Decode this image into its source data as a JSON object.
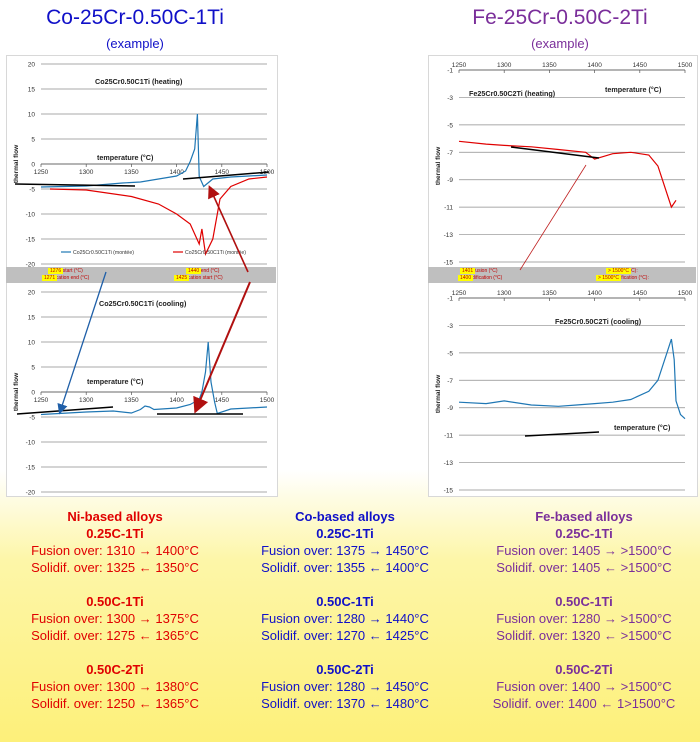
{
  "titles": {
    "co": {
      "main": "Co-25Cr-0.50C-1Ti",
      "sub": "(example)"
    },
    "fe": {
      "main": "Fe-25Cr-0.50C-2Ti",
      "sub": "(example)"
    }
  },
  "colors": {
    "ni": "#e00000",
    "co": "#1010c8",
    "fe": "#7a2e9a",
    "curve": "#1f77b4",
    "heating_curve": "#e00000"
  },
  "chart_data": [
    {
      "type": "line",
      "title": "Co25Cr0.50C1Ti (heating)",
      "xlabel": "temperature (°C)",
      "ylabel": "thermal flow",
      "xlim": [
        1250,
        1500
      ],
      "ylim": [
        -20,
        20
      ],
      "xticks": [
        "1250",
        "1300",
        "1350",
        "1400",
        "1450",
        "1500"
      ],
      "yticks": [
        "20",
        "15",
        "10",
        "5",
        "0",
        "-5",
        "-10",
        "-15",
        "-20"
      ],
      "legend": [
        "Co25Cr0.50C1Ti (montée)",
        "Co25Cr0.50C1Ti (montée)"
      ],
      "series": [
        {
          "name": "Co25Cr0.50C1Ti (montée)",
          "color": "#1f77b4",
          "x": [
            1250,
            1300,
            1340,
            1360,
            1380,
            1400,
            1410,
            1415,
            1420,
            1423,
            1425,
            1430,
            1440,
            1460,
            1480,
            1500
          ],
          "y": [
            -4.6,
            -4.4,
            -3.8,
            -3.6,
            -3.0,
            -2.4,
            -1.4,
            0.5,
            3,
            10,
            -2.5,
            -4.5,
            -3.0,
            -2.6,
            -2.4,
            -2.2
          ]
        },
        {
          "name": "Co25Cr0.50C1Ti (montée)",
          "color": "#e00000",
          "x": [
            1260,
            1300,
            1350,
            1380,
            1400,
            1415,
            1425,
            1428,
            1432,
            1440,
            1448,
            1460,
            1480,
            1500
          ],
          "y": [
            -5,
            -5.2,
            -6.5,
            -8,
            -10,
            -12,
            -16,
            -13,
            -18,
            -15,
            -7,
            -4.5,
            -3,
            -2.6
          ]
        }
      ]
    },
    {
      "type": "line",
      "title": "Co25Cr0.50C1Ti (cooling)",
      "xlabel": "temperature (°C)",
      "ylabel": "thermal flow",
      "xlim": [
        1250,
        1500
      ],
      "ylim": [
        -20,
        20
      ],
      "xticks": [
        "1250",
        "1300",
        "1350",
        "1400",
        "1450",
        "1500"
      ],
      "yticks": [
        "20",
        "15",
        "10",
        "5",
        "0",
        "-5",
        "-10",
        "-15",
        "-20"
      ],
      "series": [
        {
          "name": "",
          "color": "#1f77b4",
          "x": [
            1250,
            1280,
            1300,
            1330,
            1350,
            1360,
            1365,
            1370,
            1375,
            1400,
            1415,
            1425,
            1428,
            1432,
            1435,
            1438,
            1442,
            1445,
            1460,
            1480,
            1500
          ],
          "y": [
            -4.5,
            -4.2,
            -4.0,
            -3.8,
            -4.2,
            -3.5,
            -2.8,
            -3.0,
            -3.5,
            -3.2,
            -2.5,
            -1.5,
            0,
            4,
            10,
            2,
            -2,
            -4.3,
            -3.4,
            -3.2,
            -3.0
          ]
        }
      ]
    },
    {
      "type": "line",
      "title": "Fe25Cr0.50C2Ti (heating)",
      "xlabel": "temperature (°C)",
      "ylabel": "thermal flow",
      "xlim": [
        1250,
        1500
      ],
      "ylim": [
        -15,
        -1
      ],
      "xticks": [
        "1250",
        "1300",
        "1350",
        "1400",
        "1450",
        "1500"
      ],
      "yticks": [
        "-1",
        "-3",
        "-5",
        "-7",
        "-9",
        "-11",
        "-13",
        "-15"
      ],
      "series": [
        {
          "name": "",
          "color": "#e00000",
          "x": [
            1250,
            1280,
            1300,
            1330,
            1360,
            1390,
            1400,
            1410,
            1420,
            1440,
            1460,
            1470,
            1475,
            1480,
            1485,
            1490
          ],
          "y": [
            -6.2,
            -6.4,
            -6.5,
            -6.6,
            -6.8,
            -7.0,
            -7.5,
            -7.3,
            -7.1,
            -7.0,
            -7.2,
            -8,
            -9,
            -10,
            -11,
            -10.5
          ]
        }
      ]
    },
    {
      "type": "line",
      "title": "Fe25Cr0.50C2Ti (cooling)",
      "xlabel": "temperature (°C)",
      "ylabel": "thermal flow",
      "xlim": [
        1250,
        1500
      ],
      "ylim": [
        -15,
        -1
      ],
      "xticks": [
        "1250",
        "1300",
        "1350",
        "1400",
        "1450",
        "1500"
      ],
      "yticks": [
        "-1",
        "-3",
        "-5",
        "-7",
        "-9",
        "-11",
        "-13",
        "-15"
      ],
      "series": [
        {
          "name": "",
          "color": "#1f77b4",
          "x": [
            1250,
            1280,
            1300,
            1330,
            1360,
            1380,
            1400,
            1420,
            1440,
            1460,
            1470,
            1480,
            1485,
            1488,
            1490,
            1495,
            1500
          ],
          "y": [
            -8.6,
            -8.7,
            -8.5,
            -8.8,
            -8.9,
            -8.8,
            -8.7,
            -8.6,
            -8.4,
            -7.8,
            -7.0,
            -5.0,
            -4.0,
            -5.5,
            -8.5,
            -9.5,
            -9.8
          ]
        }
      ]
    }
  ],
  "bands": {
    "co": {
      "left": [
        {
          "label": "fusion start (°C)",
          "value": "1276"
        },
        {
          "label": "solidification end (°C)",
          "value": "1271"
        }
      ],
      "right": [
        {
          "label": "fusion end (°C)",
          "value": "1440"
        },
        {
          "label": "solidification start (°C)",
          "value": "1425"
        }
      ]
    },
    "fe": {
      "left": [
        {
          "label": "début fusion (°C)",
          "value": "1401"
        },
        {
          "label": "fin solidification (°C)",
          "value": "1400"
        }
      ],
      "right": [
        {
          "label": "fin fusion (°C):",
          "value": "> 1500°C"
        },
        {
          "label": "début solidification (°C):",
          "value": "> 1500°C"
        }
      ]
    }
  },
  "summary": {
    "ni": {
      "title": "Ni-based alloys",
      "groups": [
        {
          "name": "0.25C-1Ti",
          "fusion": "Fusion over: 1310 → 1400°C",
          "solid": "Solidif. over: 1325 ← 1350°C"
        },
        {
          "name": "0.50C-1Ti",
          "fusion": "Fusion over: 1300 → 1375°C",
          "solid": "Solidif. over: 1275 ← 1365°C"
        },
        {
          "name": "0.50C-2Ti",
          "fusion": "Fusion over: 1300 → 1380°C",
          "solid": "Solidif. over: 1250 ← 1365°C"
        }
      ]
    },
    "co": {
      "title": "Co-based alloys",
      "groups": [
        {
          "name": "0.25C-1Ti",
          "fusion": "Fusion over: 1375 → 1450°C",
          "solid": "Solidif. over: 1355 ← 1400°C"
        },
        {
          "name": "0.50C-1Ti",
          "fusion": "Fusion over: 1280 → 1440°C",
          "solid": "Solidif. over: 1270 ← 1425°C"
        },
        {
          "name": "0.50C-2Ti",
          "fusion": "Fusion over: 1280 → 1450°C",
          "solid": "Solidif. over: 1370 ← 1480°C"
        }
      ]
    },
    "fe": {
      "title": "Fe-based alloys",
      "groups": [
        {
          "name": "0.25C-1Ti",
          "fusion": "Fusion over: 1405 → >1500°C",
          "solid": "Solidif. over: 1405 ← >1500°C"
        },
        {
          "name": "0.50C-1Ti",
          "fusion": "Fusion over: 1280 → >1500°C",
          "solid": "Solidif. over: 1320 ← >1500°C"
        },
        {
          "name": "0.50C-2Ti",
          "fusion": "Fusion over: 1400 → >1500°C",
          "solid": "Solidif. over: 1400 ← 1>1500°C"
        }
      ]
    }
  }
}
